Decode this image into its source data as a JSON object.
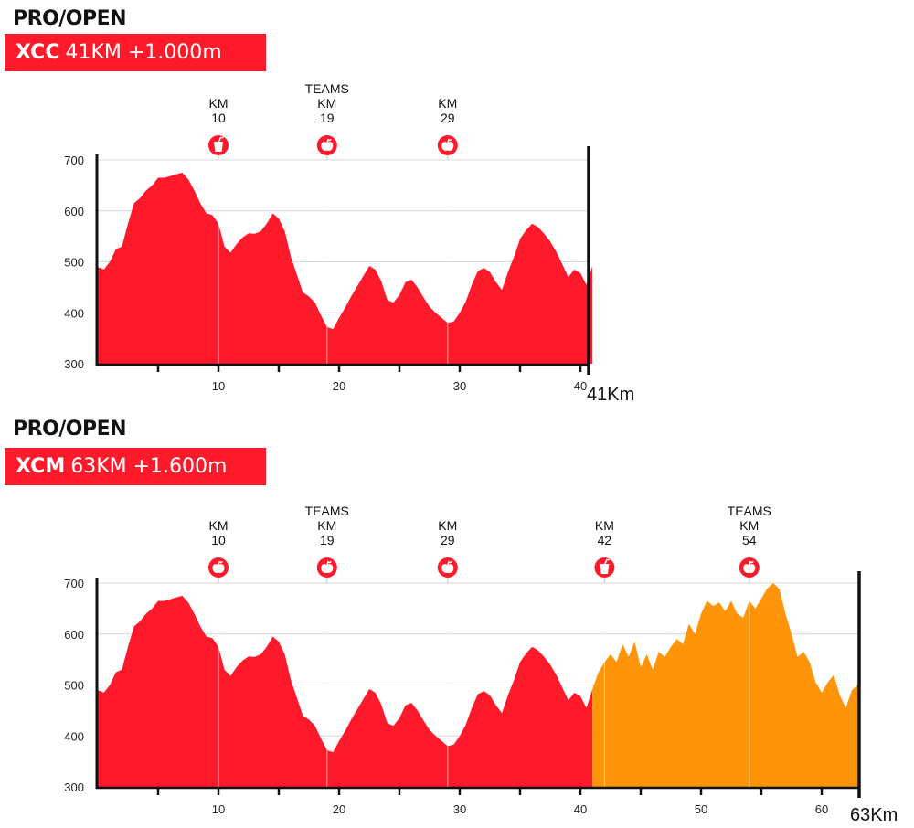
{
  "chart_data": [
    {
      "type": "area",
      "heading": "PRO/OPEN",
      "tag_strong": "XCC",
      "tag_rest": "41KM +1.000m",
      "ylim": [
        300,
        700
      ],
      "y_ticks": [
        {
          "v": 300,
          "label": "300"
        },
        {
          "v": 400,
          "label": "400"
        },
        {
          "v": 500,
          "label": "500"
        },
        {
          "v": 600,
          "label": "600"
        },
        {
          "v": 700,
          "label": "700"
        }
      ],
      "xlim": [
        0,
        41
      ],
      "x_ticks": [
        {
          "v": 10,
          "label": "10"
        },
        {
          "v": 20,
          "label": "20"
        },
        {
          "v": 30,
          "label": "30"
        },
        {
          "v": 40,
          "label": "40"
        }
      ],
      "x_minor_ticks": [
        5,
        15,
        25,
        35
      ],
      "end_label": "41Km",
      "grid": "vertical lines at stations",
      "stations": [
        {
          "km": 10,
          "lines": [
            "KM",
            "10"
          ],
          "icon": "drink-icon"
        },
        {
          "km": 19,
          "lines": [
            "TEAMS",
            "KM",
            "19"
          ],
          "icon": "apple-icon"
        },
        {
          "km": 29,
          "lines": [
            "KM",
            "29"
          ],
          "icon": "apple-icon"
        }
      ],
      "series": [
        {
          "color": "#ff1a2b",
          "x_range": [
            0,
            41
          ],
          "x": [
            0,
            0.5,
            1,
            1.5,
            2,
            2.5,
            3,
            3.5,
            4,
            4.5,
            5,
            5.5,
            6,
            6.5,
            7,
            7.5,
            8,
            8.5,
            9,
            9.5,
            10,
            10.5,
            11,
            11.5,
            12,
            12.5,
            13,
            13.5,
            14,
            14.5,
            15,
            15.5,
            16,
            16.5,
            17,
            17.5,
            18,
            18.5,
            19,
            19.5,
            20,
            20.5,
            21,
            21.5,
            22,
            22.5,
            23,
            23.5,
            24,
            24.5,
            25,
            25.5,
            26,
            26.5,
            27,
            27.5,
            28,
            28.5,
            29,
            29.5,
            30,
            30.5,
            31,
            31.5,
            32,
            32.5,
            33,
            33.5,
            34,
            34.5,
            35,
            35.5,
            36,
            36.5,
            37,
            37.5,
            38,
            38.5,
            39,
            39.5,
            40,
            40.5,
            41
          ],
          "values": [
            490,
            485,
            500,
            525,
            530,
            575,
            615,
            625,
            640,
            650,
            665,
            665,
            668,
            672,
            675,
            662,
            640,
            615,
            595,
            592,
            575,
            530,
            518,
            535,
            548,
            556,
            555,
            560,
            575,
            595,
            585,
            560,
            510,
            475,
            440,
            432,
            420,
            395,
            372,
            368,
            390,
            410,
            432,
            452,
            472,
            492,
            485,
            462,
            425,
            420,
            435,
            460,
            465,
            450,
            430,
            412,
            400,
            390,
            380,
            383,
            400,
            422,
            455,
            482,
            488,
            480,
            460,
            445,
            480,
            510,
            545,
            562,
            575,
            568,
            555,
            540,
            520,
            495,
            470,
            485,
            478,
            455,
            492
          ]
        }
      ]
    },
    {
      "type": "area",
      "heading": "PRO/OPEN",
      "tag_strong": "XCM",
      "tag_rest": "63KM +1.600m",
      "ylim": [
        300,
        700
      ],
      "y_ticks": [
        {
          "v": 300,
          "label": "300"
        },
        {
          "v": 400,
          "label": "400"
        },
        {
          "v": 500,
          "label": "500"
        },
        {
          "v": 600,
          "label": "600"
        },
        {
          "v": 700,
          "label": "700"
        }
      ],
      "xlim": [
        0,
        63
      ],
      "x_ticks": [
        {
          "v": 10,
          "label": "10"
        },
        {
          "v": 20,
          "label": "20"
        },
        {
          "v": 30,
          "label": "30"
        },
        {
          "v": 40,
          "label": "40"
        },
        {
          "v": 50,
          "label": "50"
        },
        {
          "v": 60,
          "label": "60"
        }
      ],
      "x_minor_ticks": [
        5,
        15,
        25,
        35,
        45,
        55
      ],
      "end_label": "63Km",
      "grid": "vertical lines at stations",
      "stations": [
        {
          "km": 10,
          "lines": [
            "KM",
            "10"
          ],
          "icon": "apple-icon"
        },
        {
          "km": 19,
          "lines": [
            "TEAMS",
            "KM",
            "19"
          ],
          "icon": "apple-icon"
        },
        {
          "km": 29,
          "lines": [
            "KM",
            "29"
          ],
          "icon": "apple-icon"
        },
        {
          "km": 42,
          "lines": [
            "KM",
            "42"
          ],
          "icon": "drink-icon"
        },
        {
          "km": 54,
          "lines": [
            "TEAMS",
            "KM",
            "54"
          ],
          "icon": "apple-icon"
        }
      ],
      "series": [
        {
          "color": "#ff1a2b",
          "x_range": [
            0,
            41
          ],
          "x": [
            0,
            0.5,
            1,
            1.5,
            2,
            2.5,
            3,
            3.5,
            4,
            4.5,
            5,
            5.5,
            6,
            6.5,
            7,
            7.5,
            8,
            8.5,
            9,
            9.5,
            10,
            10.5,
            11,
            11.5,
            12,
            12.5,
            13,
            13.5,
            14,
            14.5,
            15,
            15.5,
            16,
            16.5,
            17,
            17.5,
            18,
            18.5,
            19,
            19.5,
            20,
            20.5,
            21,
            21.5,
            22,
            22.5,
            23,
            23.5,
            24,
            24.5,
            25,
            25.5,
            26,
            26.5,
            27,
            27.5,
            28,
            28.5,
            29,
            29.5,
            30,
            30.5,
            31,
            31.5,
            32,
            32.5,
            33,
            33.5,
            34,
            34.5,
            35,
            35.5,
            36,
            36.5,
            37,
            37.5,
            38,
            38.5,
            39,
            39.5,
            40,
            40.5,
            41
          ],
          "values": [
            490,
            485,
            500,
            525,
            530,
            575,
            615,
            625,
            640,
            650,
            665,
            665,
            668,
            672,
            675,
            662,
            640,
            615,
            595,
            592,
            575,
            530,
            518,
            535,
            548,
            556,
            555,
            560,
            575,
            595,
            585,
            560,
            510,
            475,
            440,
            432,
            420,
            395,
            372,
            368,
            390,
            410,
            432,
            452,
            472,
            492,
            485,
            462,
            425,
            420,
            435,
            460,
            465,
            450,
            430,
            412,
            400,
            390,
            380,
            383,
            400,
            422,
            455,
            482,
            488,
            480,
            460,
            445,
            480,
            510,
            545,
            562,
            575,
            568,
            555,
            540,
            520,
            495,
            470,
            485,
            478,
            455,
            492
          ]
        },
        {
          "color": "#ff9408",
          "x_range": [
            41,
            63
          ],
          "x": [
            41,
            41.5,
            42,
            42.5,
            43,
            43.5,
            44,
            44.5,
            45,
            45.5,
            46,
            46.5,
            47,
            47.5,
            48,
            48.5,
            49,
            49.5,
            50,
            50.5,
            51,
            51.5,
            52,
            52.5,
            53,
            53.5,
            54,
            54.5,
            55,
            55.5,
            56,
            56.5,
            57,
            57.5,
            58,
            58.5,
            59,
            59.5,
            60,
            60.5,
            61,
            61.5,
            62,
            62.5,
            63
          ],
          "values": [
            492,
            525,
            545,
            560,
            545,
            580,
            555,
            585,
            535,
            560,
            530,
            565,
            555,
            575,
            590,
            580,
            620,
            600,
            640,
            665,
            655,
            662,
            645,
            665,
            640,
            632,
            665,
            650,
            670,
            690,
            700,
            688,
            640,
            600,
            555,
            565,
            545,
            505,
            485,
            505,
            520,
            480,
            455,
            490,
            500
          ]
        }
      ]
    }
  ]
}
